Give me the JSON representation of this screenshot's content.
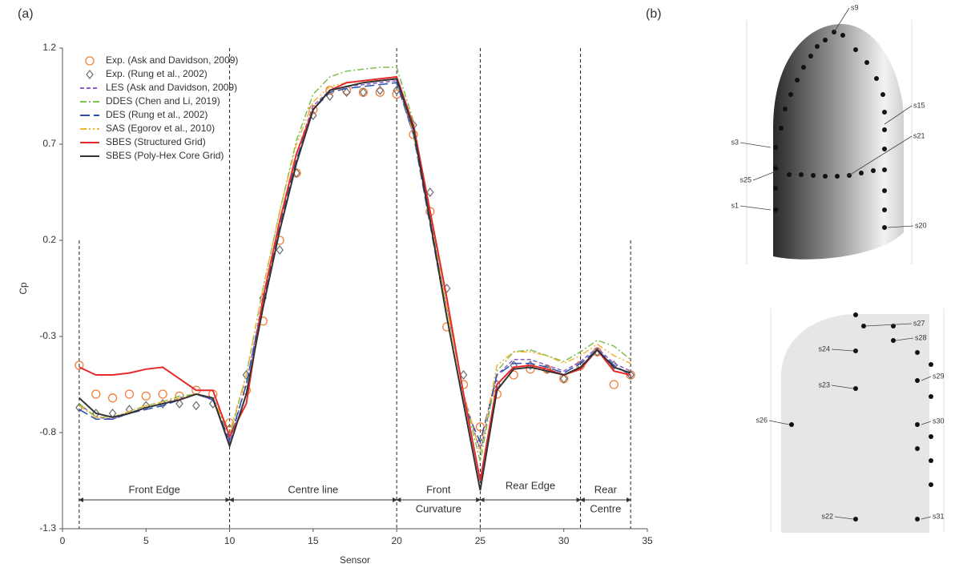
{
  "chart_data": {
    "type": "line",
    "x_label": "Sensor",
    "y_label": "Cp",
    "xlim": [
      0,
      35
    ],
    "xticks": [
      0,
      5,
      10,
      15,
      20,
      25,
      30,
      35
    ],
    "ylim": [
      -1.3,
      1.2
    ],
    "yticks": [
      -1.3,
      -0.8,
      -0.3,
      0.2,
      0.7,
      1.2
    ],
    "legend": "upper left",
    "sections": [
      1,
      10,
      20,
      25,
      31,
      34
    ],
    "section_labels": [
      "Front Edge",
      "Centre line",
      "Front",
      "Curvature",
      "Rear Edge",
      "Rear",
      "Centre"
    ],
    "x": [
      1,
      2,
      3,
      4,
      5,
      6,
      7,
      8,
      9,
      10,
      11,
      12,
      13,
      14,
      15,
      16,
      17,
      18,
      19,
      20,
      21,
      22,
      23,
      24,
      25,
      26,
      27,
      28,
      29,
      30,
      31,
      32,
      33,
      34
    ],
    "series": [
      {
        "name": "Exp. (Ask and Davidson, 2009)",
        "color": "#f07f3c",
        "marker": "circle",
        "values": [
          -0.45,
          -0.6,
          -0.62,
          -0.6,
          -0.61,
          -0.6,
          -0.61,
          -0.58,
          -0.6,
          -0.75,
          -0.58,
          -0.22,
          0.2,
          0.55,
          0.88,
          0.98,
          0.98,
          0.97,
          0.97,
          0.96,
          0.75,
          0.35,
          -0.25,
          -0.55,
          -0.77,
          -0.6,
          -0.5,
          -0.47,
          -0.47,
          -0.52,
          -0.45,
          -0.38,
          -0.55,
          -0.5
        ]
      },
      {
        "name": "Exp. (Rung et al., 2002)",
        "color": "#6b6b6b",
        "marker": "diamond",
        "values": [
          -0.67,
          -0.7,
          -0.7,
          -0.68,
          -0.66,
          -0.65,
          -0.65,
          -0.66,
          -0.65,
          -0.78,
          -0.5,
          -0.1,
          0.15,
          0.55,
          0.85,
          0.95,
          0.97,
          0.97,
          0.98,
          0.98,
          0.8,
          0.45,
          -0.05,
          -0.5,
          -0.85,
          -0.55,
          -0.45,
          -0.45,
          -0.47,
          -0.52,
          -0.45,
          -0.38,
          -0.45,
          -0.5
        ]
      },
      {
        "name": "LES (Ask and Davidson, 2009)",
        "color": "#8a5cc8",
        "line_style": "dotted",
        "values": [
          -0.65,
          -0.72,
          -0.73,
          -0.7,
          -0.67,
          -0.65,
          -0.62,
          -0.6,
          -0.63,
          -0.85,
          -0.55,
          -0.1,
          0.3,
          0.65,
          0.9,
          0.98,
          1.0,
          1.01,
          1.02,
          1.03,
          0.75,
          0.3,
          -0.15,
          -0.6,
          -0.9,
          -0.5,
          -0.42,
          -0.42,
          -0.45,
          -0.48,
          -0.43,
          -0.36,
          -0.44,
          -0.48
        ]
      },
      {
        "name": "DDES (Chen and Li, 2019)",
        "color": "#7fbf4f",
        "line_style": "dashdot",
        "values": [
          -0.65,
          -0.72,
          -0.72,
          -0.69,
          -0.66,
          -0.64,
          -0.61,
          -0.6,
          -0.62,
          -0.82,
          -0.5,
          -0.05,
          0.35,
          0.72,
          0.96,
          1.05,
          1.08,
          1.09,
          1.1,
          1.1,
          0.82,
          0.32,
          -0.15,
          -0.6,
          -0.95,
          -0.48,
          -0.38,
          -0.37,
          -0.4,
          -0.43,
          -0.38,
          -0.32,
          -0.35,
          -0.42
        ]
      },
      {
        "name": "DES (Rung et al., 2002)",
        "color": "#2a4fb0",
        "line_style": "dashed",
        "values": [
          -0.68,
          -0.73,
          -0.73,
          -0.7,
          -0.68,
          -0.66,
          -0.63,
          -0.6,
          -0.63,
          -0.84,
          -0.55,
          -0.12,
          0.28,
          0.62,
          0.88,
          0.97,
          0.99,
          1.0,
          1.01,
          1.02,
          0.75,
          0.28,
          -0.2,
          -0.65,
          -0.85,
          -0.5,
          -0.44,
          -0.44,
          -0.46,
          -0.49,
          -0.44,
          -0.37,
          -0.45,
          -0.5
        ]
      },
      {
        "name": "SAS (Egorov et al., 2010)",
        "color": "#f2b233",
        "line_style": "dashdotdot",
        "values": [
          -0.66,
          -0.72,
          -0.72,
          -0.69,
          -0.66,
          -0.64,
          -0.62,
          -0.6,
          -0.62,
          -0.8,
          -0.5,
          -0.05,
          0.35,
          0.7,
          0.92,
          1.0,
          1.02,
          1.03,
          1.03,
          1.04,
          0.76,
          0.3,
          -0.15,
          -0.6,
          -0.9,
          -0.45,
          -0.38,
          -0.38,
          -0.4,
          -0.44,
          -0.4,
          -0.34,
          -0.4,
          -0.44
        ]
      },
      {
        "name": "SBES (Structured Grid)",
        "color": "#e8292b",
        "line_style": "solid",
        "values": [
          -0.46,
          -0.5,
          -0.5,
          -0.49,
          -0.47,
          -0.46,
          -0.52,
          -0.58,
          -0.58,
          -0.82,
          -0.65,
          -0.1,
          0.3,
          0.65,
          0.88,
          0.98,
          1.02,
          1.03,
          1.04,
          1.05,
          0.8,
          0.35,
          -0.1,
          -0.6,
          -1.05,
          -0.55,
          -0.46,
          -0.45,
          -0.47,
          -0.5,
          -0.47,
          -0.37,
          -0.48,
          -0.5
        ]
      },
      {
        "name": "SBES (Poly-Hex Core Grid)",
        "color": "#333333",
        "line_style": "solid",
        "values": [
          -0.62,
          -0.7,
          -0.72,
          -0.7,
          -0.67,
          -0.65,
          -0.63,
          -0.6,
          -0.62,
          -0.87,
          -0.6,
          -0.15,
          0.25,
          0.6,
          0.88,
          0.98,
          1.0,
          1.02,
          1.03,
          1.04,
          0.78,
          0.3,
          -0.2,
          -0.65,
          -1.1,
          -0.58,
          -0.47,
          -0.46,
          -0.48,
          -0.5,
          -0.46,
          -0.37,
          -0.46,
          -0.49
        ]
      }
    ]
  },
  "panel_labels": [
    "(a)",
    "(b)"
  ],
  "diagram": {
    "top_labels": [
      "s9",
      "s15",
      "s3",
      "s21",
      "s25",
      "s1",
      "s20"
    ],
    "bottom_labels": [
      "s27",
      "s28",
      "s24",
      "s29",
      "s23",
      "s26",
      "s30",
      "s22",
      "s31"
    ]
  }
}
